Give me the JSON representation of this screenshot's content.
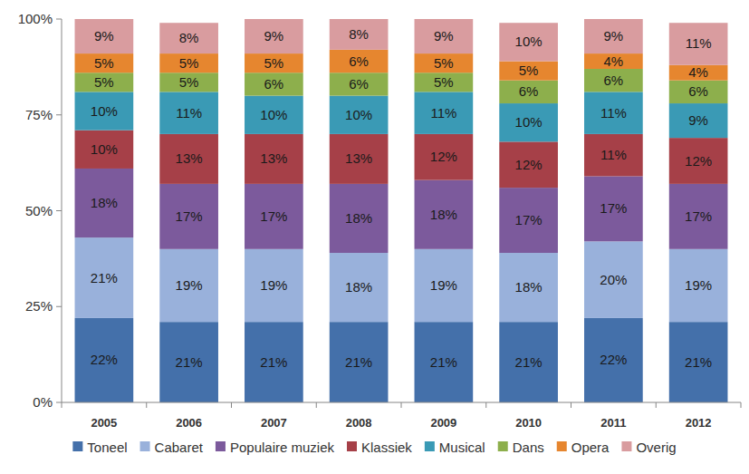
{
  "chart_data": {
    "type": "bar",
    "stacked": true,
    "data_labels": true,
    "grid": false,
    "legend": "bottom",
    "categories": [
      "2005",
      "2006",
      "2007",
      "2008",
      "2009",
      "2010",
      "2011",
      "2012"
    ],
    "ylim": [
      0,
      100
    ],
    "yticks": [
      {
        "value": 0,
        "label": "0%"
      },
      {
        "value": 25,
        "label": "25%"
      },
      {
        "value": 50,
        "label": "50%"
      },
      {
        "value": 75,
        "label": "75%"
      },
      {
        "value": 100,
        "label": "100%"
      }
    ],
    "series": [
      {
        "name": "Toneel",
        "color": "#4470aa",
        "values": [
          22,
          21,
          21,
          21,
          21,
          21,
          22,
          21
        ],
        "value_labels": [
          "22%",
          "21%",
          "21%",
          "21%",
          "21%",
          "21%",
          "22%",
          "21%"
        ]
      },
      {
        "name": "Cabaret",
        "color": "#99b1db",
        "values": [
          21,
          19,
          19,
          18,
          19,
          18,
          20,
          19
        ],
        "value_labels": [
          "21%",
          "19%",
          "19%",
          "18%",
          "19%",
          "18%",
          "20%",
          "19%"
        ]
      },
      {
        "name": "Populaire muziek",
        "color": "#7c5a9c",
        "values": [
          18,
          17,
          17,
          18,
          18,
          17,
          17,
          17
        ],
        "value_labels": [
          "18%",
          "17%",
          "17%",
          "18%",
          "18%",
          "17%",
          "17%",
          "17%"
        ]
      },
      {
        "name": "Klassiek",
        "color": "#a64048",
        "values": [
          10,
          13,
          13,
          13,
          12,
          12,
          11,
          12
        ],
        "value_labels": [
          "10%",
          "13%",
          "13%",
          "13%",
          "12%",
          "12%",
          "11%",
          "12%"
        ]
      },
      {
        "name": "Musical",
        "color": "#3a9ab5",
        "values": [
          10,
          11,
          10,
          10,
          11,
          10,
          11,
          9
        ],
        "value_labels": [
          "10%",
          "11%",
          "10%",
          "10%",
          "11%",
          "10%",
          "11%",
          "9%"
        ]
      },
      {
        "name": "Dans",
        "color": "#8daf4c",
        "values": [
          5,
          5,
          6,
          6,
          5,
          6,
          6,
          6
        ],
        "value_labels": [
          "5%",
          "5%",
          "6%",
          "6%",
          "5%",
          "6%",
          "6%",
          "6%"
        ]
      },
      {
        "name": "Opera",
        "color": "#e6862f",
        "values": [
          5,
          5,
          5,
          6,
          5,
          5,
          4,
          4
        ],
        "value_labels": [
          "5%",
          "5%",
          "5%",
          "6%",
          "5%",
          "5%",
          "4%",
          "4%"
        ]
      },
      {
        "name": "Overig",
        "color": "#d99c9f",
        "values": [
          9,
          8,
          9,
          8,
          9,
          10,
          9,
          11
        ],
        "value_labels": [
          "9%",
          "8%",
          "9%",
          "8%",
          "9%",
          "10%",
          "9%",
          "11%"
        ]
      }
    ]
  }
}
